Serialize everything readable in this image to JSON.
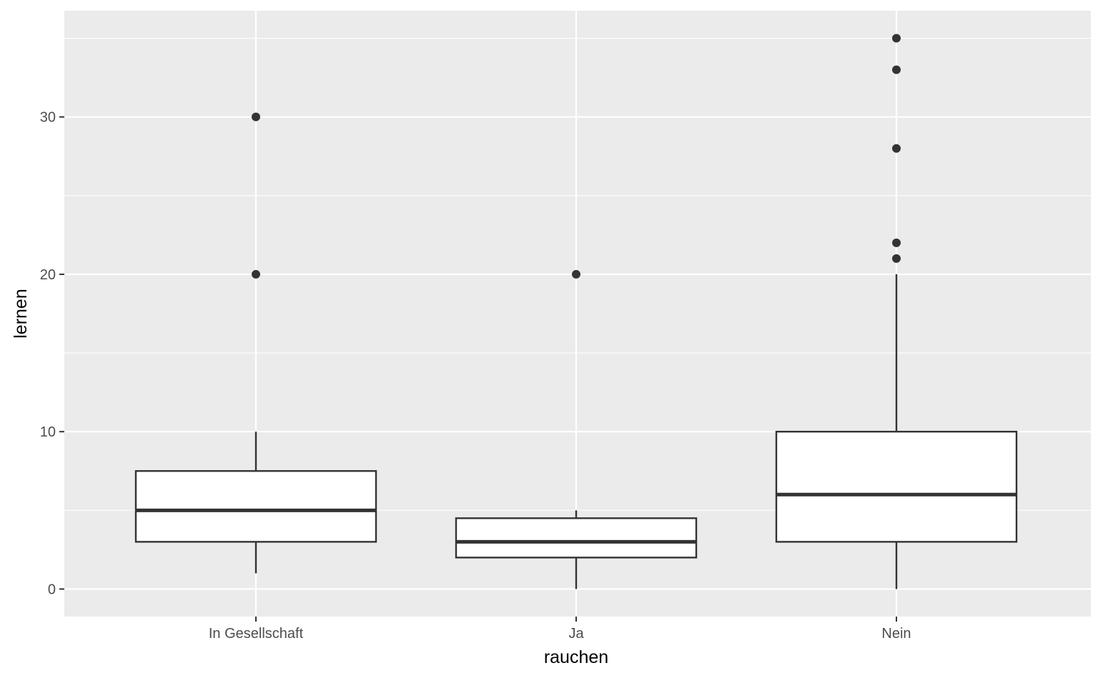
{
  "chart_data": {
    "type": "boxplot",
    "title": "",
    "xlabel": "rauchen",
    "ylabel": "lernen",
    "ylim": [
      -1.75,
      36.75
    ],
    "yticks": [
      0,
      10,
      20,
      30
    ],
    "y_minor_ticks": [
      5,
      15,
      25,
      35
    ],
    "grid": true,
    "legend": "none",
    "colors": {
      "panel_background": "#ebebeb",
      "grid": "#ffffff",
      "box_fill": "#ffffff",
      "box_line": "#333333",
      "outlier": "#333333"
    },
    "categories": [
      "In Gesellschaft",
      "Ja",
      "Nein"
    ],
    "boxes": [
      {
        "category": "In Gesellschaft",
        "whisker_low": 1,
        "q1": 3,
        "median": 5,
        "q3": 7.5,
        "whisker_high": 10,
        "outliers": [
          20,
          30
        ]
      },
      {
        "category": "Ja",
        "whisker_low": 0,
        "q1": 2,
        "median": 3,
        "q3": 4.5,
        "whisker_high": 5,
        "outliers": [
          20
        ]
      },
      {
        "category": "Nein",
        "whisker_low": 0,
        "q1": 3,
        "median": 6,
        "q3": 10,
        "whisker_high": 20,
        "outliers": [
          21,
          22,
          28,
          33,
          35
        ]
      }
    ]
  }
}
